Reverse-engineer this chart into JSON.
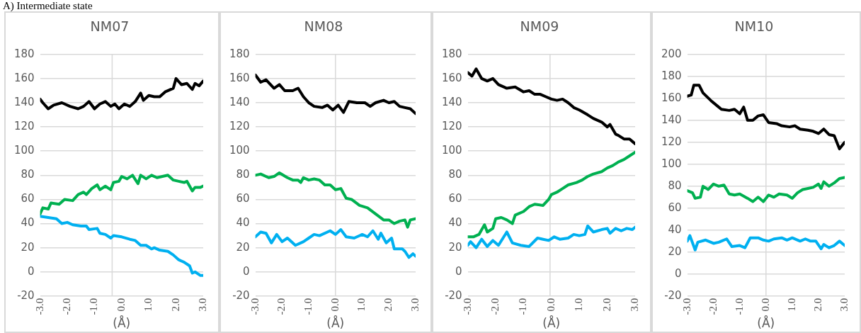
{
  "chart_data": [
    {
      "type": "line",
      "title": "NM07",
      "xlabel": "(Å)",
      "annotations": [
        "A) Intermediate state"
      ],
      "xlim": [
        -3,
        3
      ],
      "xticks": [
        {
          "value": -3,
          "label": "-3.0"
        },
        {
          "value": -2,
          "label": "-2.0"
        },
        {
          "value": -1,
          "label": "-1.0"
        },
        {
          "value": 0,
          "label": "0.0"
        },
        {
          "value": 1,
          "label": "1.0"
        },
        {
          "value": 2,
          "label": "2.0"
        },
        {
          "value": 3,
          "label": "3.0"
        }
      ],
      "ylim": [
        -20,
        180
      ],
      "yticks": [
        -20,
        0,
        20,
        40,
        60,
        80,
        100,
        120,
        140,
        160,
        180
      ],
      "grid": "y",
      "legend": false,
      "marker": "none",
      "line_style": "solid",
      "ref_lines": [
        {
          "axis": "x",
          "value": -0.35,
          "color": "#d9d9d9"
        }
      ],
      "series": [
        {
          "color": "#000000",
          "x": [
            -3,
            -2.9,
            -2.7,
            -2.5,
            -2.2,
            -1.9,
            -1.6,
            -1.4,
            -1.2,
            -1,
            -0.8,
            -0.6,
            -0.4,
            -0.25,
            -0.1,
            0.1,
            0.3,
            0.5,
            0.7,
            0.8,
            1,
            1.2,
            1.4,
            1.6,
            1.9,
            2,
            2.2,
            2.4,
            2.6,
            2.7,
            2.85,
            3
          ],
          "values": [
            143,
            140,
            135,
            138,
            140,
            137,
            135,
            137,
            141,
            135,
            139,
            141,
            137,
            139,
            135,
            139,
            137,
            141,
            148,
            142,
            146,
            145,
            145,
            149,
            152,
            160,
            155,
            156,
            151,
            156,
            154,
            158
          ]
        },
        {
          "color": "#00b050",
          "x": [
            -3,
            -2.9,
            -2.7,
            -2.6,
            -2.3,
            -2.1,
            -1.8,
            -1.6,
            -1.4,
            -1.3,
            -1.1,
            -0.9,
            -0.8,
            -0.6,
            -0.4,
            -0.3,
            -0.1,
            0,
            0.2,
            0.4,
            0.6,
            0.7,
            0.9,
            1.1,
            1.3,
            1.5,
            1.7,
            1.9,
            2.1,
            2.3,
            2.4,
            2.6,
            2.7,
            2.9,
            3
          ],
          "values": [
            48,
            53,
            52,
            57,
            56,
            60,
            59,
            64,
            66,
            64,
            69,
            72,
            68,
            71,
            68,
            74,
            75,
            79,
            77,
            80,
            73,
            80,
            77,
            80,
            78,
            79,
            80,
            76,
            75,
            74,
            75,
            67,
            70,
            70,
            71
          ]
        },
        {
          "color": "#00b0f0",
          "x": [
            -3,
            -2.7,
            -2.4,
            -2.2,
            -2,
            -1.8,
            -1.5,
            -1.3,
            -1.2,
            -0.9,
            -0.8,
            -0.6,
            -0.4,
            -0.3,
            0,
            0.3,
            0.5,
            0.7,
            0.9,
            1.1,
            1.2,
            1.4,
            1.7,
            1.9,
            2.1,
            2.3,
            2.5,
            2.6,
            2.7,
            2.9,
            3
          ],
          "values": [
            46,
            45,
            44,
            40,
            41,
            39,
            38,
            38,
            35,
            36,
            32,
            31,
            28,
            30,
            29,
            27,
            26,
            22,
            22,
            19,
            20,
            18,
            17,
            14,
            10,
            8,
            5,
            -1,
            0,
            -3,
            -3
          ]
        }
      ]
    },
    {
      "type": "line",
      "title": "NM08",
      "xlabel": "(Å)",
      "xlim": [
        -3,
        3
      ],
      "xticks": [
        {
          "value": -3,
          "label": "-3.0"
        },
        {
          "value": -2,
          "label": "-2.0"
        },
        {
          "value": -1,
          "label": "-1.0"
        },
        {
          "value": 0,
          "label": "0.0"
        },
        {
          "value": 1,
          "label": "1.0"
        },
        {
          "value": 2,
          "label": "2.0"
        },
        {
          "value": 3,
          "label": "3.0"
        }
      ],
      "ylim": [
        -20,
        180
      ],
      "yticks": [
        -20,
        0,
        20,
        40,
        60,
        80,
        100,
        120,
        140,
        160,
        180
      ],
      "grid": "y",
      "legend": false,
      "marker": "none",
      "line_style": "solid",
      "ref_lines": [
        {
          "axis": "x",
          "value": 0,
          "color": "#d9d9d9"
        }
      ],
      "series": [
        {
          "color": "#000000",
          "x": [
            -3,
            -2.8,
            -2.6,
            -2.3,
            -2.1,
            -1.9,
            -1.6,
            -1.4,
            -1.2,
            -1,
            -0.8,
            -0.5,
            -0.3,
            -0.1,
            0.1,
            0.3,
            0.5,
            0.8,
            1.1,
            1.3,
            1.5,
            1.8,
            2,
            2.2,
            2.4,
            2.6,
            2.8,
            3
          ],
          "values": [
            163,
            157,
            159,
            152,
            155,
            150,
            150,
            152,
            145,
            140,
            137,
            136,
            138,
            134,
            138,
            132,
            141,
            140,
            140,
            137,
            140,
            142,
            140,
            141,
            137,
            136,
            135,
            131
          ]
        },
        {
          "color": "#00b050",
          "x": [
            -3,
            -2.8,
            -2.5,
            -2.3,
            -2.1,
            -1.8,
            -1.6,
            -1.4,
            -1.3,
            -1.2,
            -1,
            -0.8,
            -0.6,
            -0.4,
            -0.2,
            0,
            0.2,
            0.4,
            0.6,
            0.9,
            1.2,
            1.5,
            1.8,
            2,
            2.2,
            2.4,
            2.6,
            2.7,
            2.8,
            3
          ],
          "values": [
            80,
            81,
            78,
            79,
            82,
            78,
            76,
            76,
            74,
            78,
            76,
            77,
            76,
            72,
            72,
            68,
            69,
            61,
            60,
            55,
            53,
            48,
            43,
            43,
            40,
            42,
            43,
            37,
            43,
            44
          ]
        },
        {
          "color": "#00b0f0",
          "x": [
            -3,
            -2.8,
            -2.6,
            -2.4,
            -2.2,
            -2,
            -1.8,
            -1.5,
            -1.2,
            -1,
            -0.8,
            -0.6,
            -0.2,
            0,
            0.2,
            0.4,
            0.7,
            1,
            1.2,
            1.4,
            1.6,
            1.7,
            1.9,
            2.1,
            2.2,
            2.5,
            2.6,
            2.75,
            2.9,
            3
          ],
          "values": [
            29,
            33,
            32,
            24,
            31,
            25,
            28,
            22,
            25,
            28,
            31,
            30,
            34,
            31,
            35,
            29,
            28,
            31,
            29,
            34,
            27,
            32,
            24,
            28,
            19,
            19,
            17,
            12,
            15,
            13
          ]
        }
      ]
    },
    {
      "type": "line",
      "title": "NM09",
      "xlabel": "(Å)",
      "xlim": [
        -3,
        3
      ],
      "xticks": [
        {
          "value": -3,
          "label": "-3.0"
        },
        {
          "value": -2,
          "label": "-2.0"
        },
        {
          "value": -1,
          "label": "-1.0"
        },
        {
          "value": 0,
          "label": "0.0"
        },
        {
          "value": 1,
          "label": "1.0"
        },
        {
          "value": 2,
          "label": "2.0"
        },
        {
          "value": 3,
          "label": "3.0"
        }
      ],
      "ylim": [
        -20,
        180
      ],
      "yticks": [
        -20,
        0,
        20,
        40,
        60,
        80,
        100,
        120,
        140,
        160,
        180
      ],
      "grid": "y",
      "legend": false,
      "marker": "none",
      "line_style": "solid",
      "ref_lines": [
        {
          "axis": "x",
          "value": -0.05,
          "color": "#d9d9d9"
        }
      ],
      "series": [
        {
          "color": "#000000",
          "x": [
            -3,
            -2.85,
            -2.7,
            -2.5,
            -2.3,
            -2.1,
            -1.9,
            -1.6,
            -1.3,
            -1,
            -0.8,
            -0.6,
            -0.4,
            -0.2,
            0,
            0.2,
            0.4,
            0.6,
            0.8,
            1,
            1.3,
            1.5,
            1.8,
            2,
            2.1,
            2.3,
            2.4,
            2.6,
            2.8,
            3
          ],
          "values": [
            165,
            162,
            168,
            160,
            158,
            160,
            155,
            152,
            153,
            149,
            150,
            147,
            147,
            145,
            143,
            142,
            143,
            140,
            136,
            134,
            130,
            127,
            124,
            120,
            122,
            114,
            113,
            110,
            110,
            106
          ]
        },
        {
          "color": "#00b050",
          "x": [
            -3,
            -2.8,
            -2.6,
            -2.4,
            -2.3,
            -2.1,
            -2,
            -1.8,
            -1.6,
            -1.4,
            -1.3,
            -1,
            -0.8,
            -0.6,
            -0.3,
            -0.1,
            0,
            0.2,
            0.4,
            0.6,
            0.9,
            1.1,
            1.3,
            1.5,
            1.8,
            2,
            2.2,
            2.4,
            2.6,
            2.8,
            3
          ],
          "values": [
            29,
            29,
            31,
            39,
            33,
            36,
            44,
            45,
            43,
            40,
            47,
            50,
            54,
            56,
            55,
            60,
            64,
            66,
            69,
            72,
            74,
            76,
            79,
            81,
            83,
            86,
            88,
            91,
            93,
            96,
            99
          ]
        },
        {
          "color": "#00b0f0",
          "x": [
            -3,
            -2.9,
            -2.7,
            -2.5,
            -2.3,
            -2.1,
            -1.9,
            -1.6,
            -1.4,
            -1.1,
            -0.8,
            -0.5,
            -0.3,
            -0.1,
            0.1,
            0.3,
            0.6,
            0.8,
            1,
            1.2,
            1.3,
            1.5,
            1.8,
            2,
            2.1,
            2.3,
            2.5,
            2.7,
            2.9,
            3
          ],
          "values": [
            22,
            25,
            20,
            27,
            21,
            26,
            22,
            33,
            24,
            22,
            21,
            28,
            27,
            26,
            29,
            27,
            28,
            31,
            30,
            31,
            38,
            33,
            35,
            36,
            32,
            36,
            34,
            36,
            35,
            37
          ]
        }
      ]
    },
    {
      "type": "line",
      "title": "NM10",
      "xlabel": "(Å)",
      "xlim": [
        -3,
        3
      ],
      "xticks": [
        {
          "value": -3,
          "label": "-3.0"
        },
        {
          "value": -2,
          "label": "-2.0"
        },
        {
          "value": -1,
          "label": "-1.0"
        },
        {
          "value": 0,
          "label": "0.0"
        },
        {
          "value": 1,
          "label": "1.0"
        },
        {
          "value": 2,
          "label": "2.0"
        },
        {
          "value": 3,
          "label": "3.0"
        }
      ],
      "ylim": [
        -20,
        200
      ],
      "yticks": [
        -20,
        0,
        20,
        40,
        60,
        80,
        100,
        120,
        140,
        160,
        180,
        200
      ],
      "grid": "y",
      "legend": false,
      "marker": "none",
      "line_style": "solid",
      "ref_lines": [
        {
          "axis": "x",
          "value": 0,
          "color": "#d9d9d9"
        }
      ],
      "series": [
        {
          "color": "#000000",
          "x": [
            -3,
            -2.85,
            -2.75,
            -2.55,
            -2.4,
            -2.1,
            -1.9,
            -1.7,
            -1.4,
            -1.2,
            -1,
            -0.85,
            -0.7,
            -0.5,
            -0.3,
            -0.1,
            0.1,
            0.4,
            0.6,
            0.9,
            1.1,
            1.3,
            1.6,
            1.8,
            2,
            2.2,
            2.4,
            2.6,
            2.8,
            3
          ],
          "values": [
            162,
            163,
            172,
            172,
            165,
            158,
            154,
            150,
            149,
            150,
            146,
            152,
            140,
            140,
            144,
            145,
            138,
            137,
            135,
            134,
            135,
            132,
            131,
            130,
            128,
            132,
            127,
            126,
            114,
            120
          ]
        },
        {
          "color": "#00b050",
          "x": [
            -3,
            -2.8,
            -2.7,
            -2.5,
            -2.4,
            -2.2,
            -2,
            -1.8,
            -1.6,
            -1.4,
            -1.2,
            -1,
            -0.7,
            -0.5,
            -0.3,
            -0.1,
            0.1,
            0.3,
            0.5,
            0.8,
            1,
            1.2,
            1.4,
            1.6,
            1.8,
            2,
            2.1,
            2.2,
            2.4,
            2.6,
            2.8,
            3
          ],
          "values": [
            76,
            74,
            69,
            70,
            80,
            77,
            82,
            80,
            81,
            73,
            72,
            73,
            69,
            66,
            70,
            66,
            72,
            70,
            73,
            72,
            69,
            74,
            77,
            78,
            79,
            82,
            78,
            84,
            80,
            83,
            87,
            88
          ]
        },
        {
          "color": "#00b0f0",
          "x": [
            -3,
            -2.9,
            -2.7,
            -2.6,
            -2.3,
            -2,
            -1.8,
            -1.5,
            -1.3,
            -1,
            -0.8,
            -0.6,
            -0.3,
            -0.1,
            0.1,
            0.3,
            0.6,
            0.8,
            1,
            1.3,
            1.5,
            1.7,
            1.9,
            2.1,
            2.2,
            2.4,
            2.6,
            2.8,
            3
          ],
          "values": [
            30,
            35,
            22,
            29,
            31,
            28,
            29,
            32,
            25,
            26,
            24,
            33,
            33,
            31,
            30,
            32,
            33,
            31,
            33,
            30,
            32,
            30,
            30,
            23,
            27,
            24,
            26,
            30,
            26
          ]
        }
      ]
    }
  ]
}
